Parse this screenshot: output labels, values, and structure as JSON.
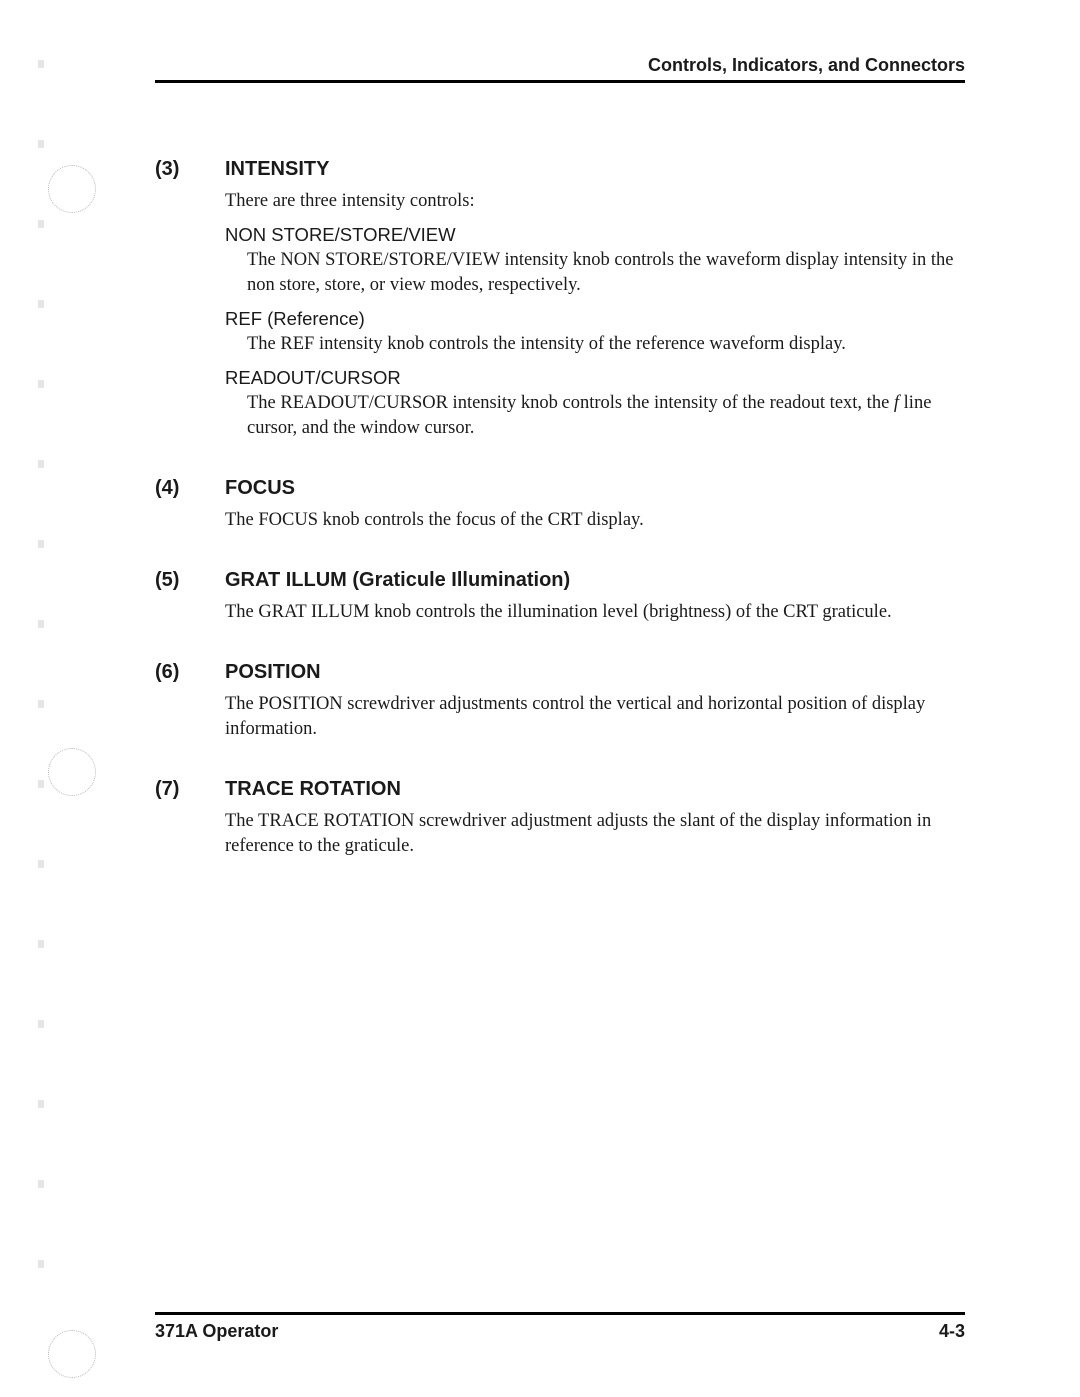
{
  "header": "Controls, Indicators, and Connectors",
  "sections": [
    {
      "num": "(3)",
      "title": "INTENSITY",
      "intro": "There are three intensity controls:",
      "subs": [
        {
          "head": "NON STORE/STORE/VIEW",
          "body": "The NON STORE/STORE/VIEW intensity knob controls the waveform display intensity in the non store, store, or view modes, respectively."
        },
        {
          "head": "REF (Reference)",
          "body": "The REF intensity knob controls the intensity of the reference waveform display."
        },
        {
          "head": "READOUT/CURSOR",
          "body_html": "The READOUT/CURSOR intensity knob controls the intensity of the readout text, the <span class=\"italic\">f</span> line cursor, and the window cursor."
        }
      ]
    },
    {
      "num": "(4)",
      "title": "FOCUS",
      "body": "The FOCUS knob controls the focus of the CRT display."
    },
    {
      "num": "(5)",
      "title": "GRAT ILLUM (Graticule Illumination)",
      "body": "The GRAT ILLUM knob controls the illumination level (brightness) of the CRT graticule."
    },
    {
      "num": "(6)",
      "title": "POSITION",
      "body": "The POSITION screwdriver adjustments control the vertical and horizontal position of display information."
    },
    {
      "num": "(7)",
      "title": "TRACE ROTATION",
      "body": "The TRACE ROTATION screwdriver adjustment adjusts the slant of the display information in reference to the graticule."
    }
  ],
  "footer_left": "371A Operator",
  "footer_right": "4-3"
}
